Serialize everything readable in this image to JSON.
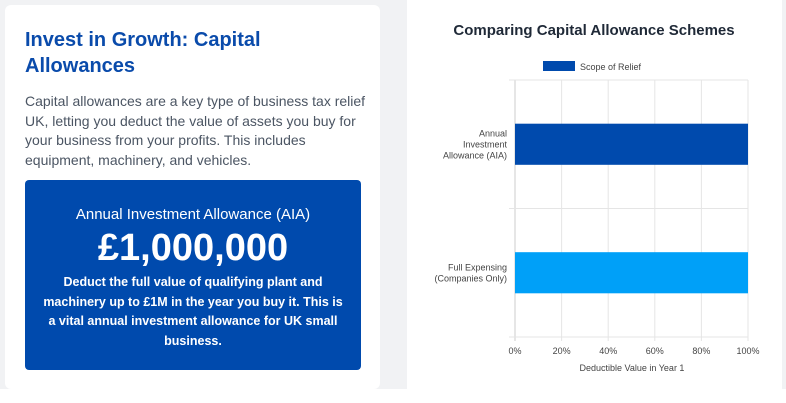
{
  "info_card": {
    "title": "Invest in Growth: Capital Allowances",
    "description": "Capital allowances are a key type of business tax relief UK, letting you deduct the value of assets you buy for your business from your profits. This includes equipment, machinery, and vehicles.",
    "highlight": {
      "label": "Annual Investment Allowance (AIA)",
      "amount": "£1,000,000",
      "description": "Deduct the full value of qualifying plant and machinery up to £1M in the year you buy it. This is a vital annual investment allowance for UK small business."
    }
  },
  "chart_data": {
    "type": "bar",
    "orientation": "horizontal",
    "title": "Comparing Capital Allowance Schemes",
    "categories": [
      [
        "Annual",
        "Investment",
        "Allowance (AIA)"
      ],
      [
        "Full Expensing",
        "(Companies Only)"
      ]
    ],
    "series": [
      {
        "name": "Scope of Relief",
        "values": [
          100,
          100
        ]
      }
    ],
    "bar_colors": [
      "#004aad",
      "#00a0f8"
    ],
    "xlabel": "Deductible Value in Year 1",
    "xlim": [
      0,
      100
    ],
    "xticks": [
      "0%",
      "20%",
      "40%",
      "60%",
      "80%",
      "100%"
    ],
    "grid": true,
    "legend": "top"
  }
}
